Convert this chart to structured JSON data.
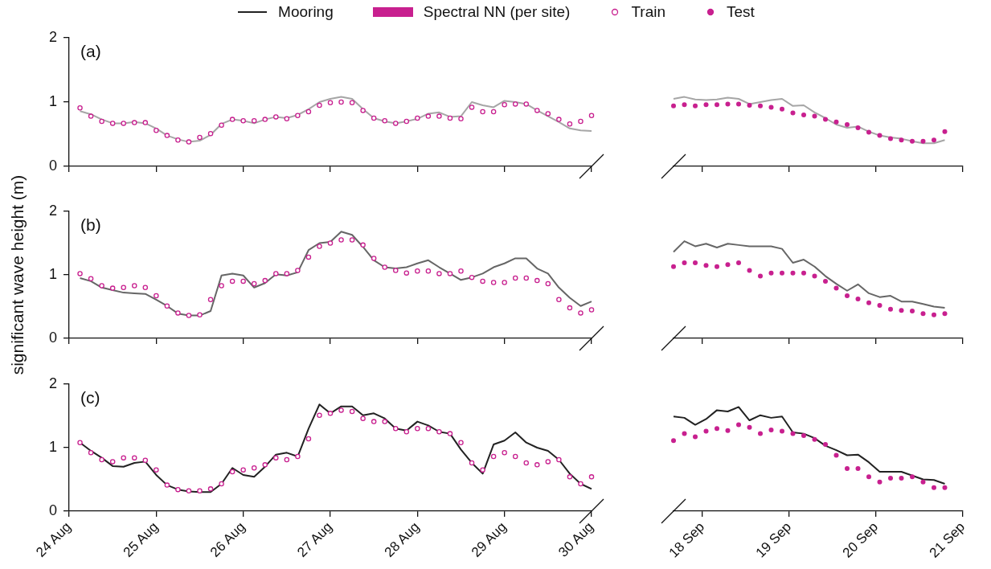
{
  "chart_data": [
    {
      "type": "line",
      "annotations": [
        "(a)"
      ],
      "tick_labels": "y",
      "ylim": [
        0,
        2
      ],
      "yticks": [
        0,
        1,
        2
      ],
      "xlim": [
        "--08-24",
        "--08-30"
      ],
      "xticks": [
        {
          "value": "--08-24",
          "label": null
        },
        {
          "value": "--08-25",
          "label": null
        },
        {
          "value": "--08-26",
          "label": null
        },
        {
          "value": "--08-27",
          "label": null
        },
        {
          "value": "--08-28",
          "label": null
        },
        {
          "value": "--08-29",
          "label": null
        },
        {
          "value": "--08-30",
          "label": null
        }
      ],
      "x": [
        "--08-24T03:00",
        "--08-24T06:00",
        "--08-24T09:00",
        "--08-24T12:00",
        "--08-24T15:00",
        "--08-24T18:00",
        "--08-24T21:00",
        "--08-25T00:00",
        "--08-25T03:00",
        "--08-25T06:00",
        "--08-25T09:00",
        "--08-25T12:00",
        "--08-25T15:00",
        "--08-25T18:00",
        "--08-25T21:00",
        "--08-26T00:00",
        "--08-26T03:00",
        "--08-26T06:00",
        "--08-26T09:00",
        "--08-26T12:00",
        "--08-26T15:00",
        "--08-26T18:00",
        "--08-26T21:00",
        "--08-27T00:00",
        "--08-27T03:00",
        "--08-27T06:00",
        "--08-27T09:00",
        "--08-27T12:00",
        "--08-27T15:00",
        "--08-27T18:00",
        "--08-27T21:00",
        "--08-28T00:00",
        "--08-28T03:00",
        "--08-28T06:00",
        "--08-28T09:00",
        "--08-28T12:00",
        "--08-28T15:00",
        "--08-28T18:00",
        "--08-28T21:00",
        "--08-29T00:00",
        "--08-29T03:00",
        "--08-29T06:00",
        "--08-29T09:00",
        "--08-29T12:00",
        "--08-29T15:00",
        "--08-29T18:00",
        "--08-29T21:00",
        "--08-30T00:00"
      ],
      "series": [
        {
          "type": "line",
          "color": "#a6a6a6",
          "values": [
            0.86,
            0.81,
            0.73,
            0.67,
            0.67,
            0.69,
            0.67,
            0.59,
            0.48,
            0.42,
            0.38,
            0.4,
            0.49,
            0.66,
            0.73,
            0.71,
            0.67,
            0.73,
            0.77,
            0.75,
            0.8,
            0.89,
            1.0,
            1.05,
            1.08,
            1.05,
            0.89,
            0.75,
            0.7,
            0.67,
            0.7,
            0.74,
            0.82,
            0.84,
            0.77,
            0.78,
            1.0,
            0.95,
            0.92,
            1.02,
            1.0,
            0.97,
            0.87,
            0.78,
            0.69,
            0.59,
            0.56,
            0.55
          ]
        },
        {
          "type": "scatter",
          "color": "#c8208f",
          "marker": "circle",
          "values": [
            0.91,
            0.78,
            0.7,
            0.67,
            0.67,
            0.68,
            0.68,
            0.56,
            0.48,
            0.41,
            0.38,
            0.45,
            0.51,
            0.64,
            0.73,
            0.71,
            0.71,
            0.73,
            0.77,
            0.74,
            0.79,
            0.85,
            0.95,
            0.99,
            1.0,
            0.99,
            0.87,
            0.75,
            0.71,
            0.67,
            0.7,
            0.75,
            0.78,
            0.78,
            0.75,
            0.74,
            0.92,
            0.85,
            0.85,
            0.96,
            0.97,
            0.97,
            0.87,
            0.82,
            0.73,
            0.66,
            0.7,
            0.79
          ]
        }
      ]
    },
    {
      "type": "line",
      "tick_labels": false,
      "ylim": [
        0,
        2
      ],
      "yticks": [
        0,
        1,
        2
      ],
      "xlim": [
        "--09-17T16:00",
        "--09-21"
      ],
      "xticks": [
        {
          "value": "--09-18",
          "label": null
        },
        {
          "value": "--09-19",
          "label": null
        },
        {
          "value": "--09-20",
          "label": null
        },
        {
          "value": "--09-21",
          "label": null
        }
      ],
      "x": [
        "--09-17T16:00",
        "--09-17T19:00",
        "--09-17T22:00",
        "--09-18T01:00",
        "--09-18T04:00",
        "--09-18T07:00",
        "--09-18T10:00",
        "--09-18T13:00",
        "--09-18T16:00",
        "--09-18T19:00",
        "--09-18T22:00",
        "--09-19T01:00",
        "--09-19T04:00",
        "--09-19T07:00",
        "--09-19T10:00",
        "--09-19T13:00",
        "--09-19T16:00",
        "--09-19T19:00",
        "--09-19T22:00",
        "--09-20T01:00",
        "--09-20T04:00",
        "--09-20T07:00",
        "--09-20T10:00",
        "--09-20T13:00",
        "--09-20T16:00",
        "--09-20T19:00"
      ],
      "series": [
        {
          "type": "line",
          "color": "#a6a6a6",
          "values": [
            1.05,
            1.08,
            1.04,
            1.03,
            1.04,
            1.07,
            1.05,
            0.97,
            1.0,
            1.03,
            1.05,
            0.94,
            0.95,
            0.84,
            0.75,
            0.65,
            0.6,
            0.62,
            0.54,
            0.48,
            0.45,
            0.43,
            0.39,
            0.36,
            0.36,
            0.41
          ]
        },
        {
          "type": "scatter",
          "color": "#c8208f",
          "marker": "circle",
          "values": [
            0.94,
            0.96,
            0.94,
            0.96,
            0.96,
            0.97,
            0.97,
            0.95,
            0.94,
            0.92,
            0.89,
            0.83,
            0.8,
            0.78,
            0.73,
            0.69,
            0.65,
            0.6,
            0.53,
            0.48,
            0.43,
            0.41,
            0.39,
            0.39,
            0.41,
            0.54
          ]
        }
      ]
    },
    {
      "type": "line",
      "ylabel": "significant wave height (m)",
      "annotations": [
        "(b)"
      ],
      "tick_labels": "y",
      "ylim": [
        0,
        2
      ],
      "yticks": [
        0,
        1,
        2
      ],
      "xlim": [
        "--08-24",
        "--08-30"
      ],
      "xticks": [
        {
          "value": "--08-24",
          "label": null
        },
        {
          "value": "--08-25",
          "label": null
        },
        {
          "value": "--08-26",
          "label": null
        },
        {
          "value": "--08-27",
          "label": null
        },
        {
          "value": "--08-28",
          "label": null
        },
        {
          "value": "--08-29",
          "label": null
        },
        {
          "value": "--08-30",
          "label": null
        }
      ],
      "x": [
        "--08-24T03:00",
        "--08-24T06:00",
        "--08-24T09:00",
        "--08-24T12:00",
        "--08-24T15:00",
        "--08-24T18:00",
        "--08-24T21:00",
        "--08-25T00:00",
        "--08-25T03:00",
        "--08-25T06:00",
        "--08-25T09:00",
        "--08-25T12:00",
        "--08-25T15:00",
        "--08-25T18:00",
        "--08-25T21:00",
        "--08-26T00:00",
        "--08-26T03:00",
        "--08-26T06:00",
        "--08-26T09:00",
        "--08-26T12:00",
        "--08-26T15:00",
        "--08-26T18:00",
        "--08-26T21:00",
        "--08-27T00:00",
        "--08-27T03:00",
        "--08-27T06:00",
        "--08-27T09:00",
        "--08-27T12:00",
        "--08-27T15:00",
        "--08-27T18:00",
        "--08-27T21:00",
        "--08-28T00:00",
        "--08-28T03:00",
        "--08-28T06:00",
        "--08-28T09:00",
        "--08-28T12:00",
        "--08-28T15:00",
        "--08-28T18:00",
        "--08-28T21:00",
        "--08-29T00:00",
        "--08-29T03:00",
        "--08-29T06:00",
        "--08-29T09:00",
        "--08-29T12:00",
        "--08-29T15:00",
        "--08-29T18:00",
        "--08-29T21:00",
        "--08-30T00:00"
      ],
      "series": [
        {
          "type": "line",
          "color": "#666666",
          "values": [
            0.95,
            0.9,
            0.8,
            0.76,
            0.72,
            0.71,
            0.7,
            0.61,
            0.51,
            0.39,
            0.36,
            0.36,
            0.43,
            0.99,
            1.02,
            0.99,
            0.8,
            0.87,
            1.01,
            0.99,
            1.04,
            1.39,
            1.5,
            1.52,
            1.68,
            1.63,
            1.44,
            1.23,
            1.12,
            1.1,
            1.12,
            1.18,
            1.23,
            1.12,
            1.02,
            0.92,
            0.96,
            1.02,
            1.12,
            1.18,
            1.26,
            1.26,
            1.1,
            1.02,
            0.8,
            0.64,
            0.51,
            0.58
          ]
        },
        {
          "type": "scatter",
          "color": "#c8208f",
          "marker": "circle",
          "values": [
            1.02,
            0.94,
            0.83,
            0.79,
            0.8,
            0.83,
            0.8,
            0.67,
            0.51,
            0.4,
            0.36,
            0.37,
            0.61,
            0.83,
            0.9,
            0.9,
            0.86,
            0.91,
            1.02,
            1.02,
            1.07,
            1.28,
            1.45,
            1.5,
            1.55,
            1.55,
            1.47,
            1.26,
            1.12,
            1.07,
            1.03,
            1.06,
            1.06,
            1.02,
            1.02,
            1.06,
            0.96,
            0.9,
            0.88,
            0.88,
            0.95,
            0.95,
            0.91,
            0.86,
            0.61,
            0.48,
            0.4,
            0.45
          ]
        }
      ]
    },
    {
      "type": "line",
      "tick_labels": false,
      "ylim": [
        0,
        2
      ],
      "yticks": [
        0,
        1,
        2
      ],
      "xlim": [
        "--09-17T16:00",
        "--09-21"
      ],
      "xticks": [
        {
          "value": "--09-18",
          "label": null
        },
        {
          "value": "--09-19",
          "label": null
        },
        {
          "value": "--09-20",
          "label": null
        },
        {
          "value": "--09-21",
          "label": null
        }
      ],
      "x": [
        "--09-17T16:00",
        "--09-17T19:00",
        "--09-17T22:00",
        "--09-18T01:00",
        "--09-18T04:00",
        "--09-18T07:00",
        "--09-18T10:00",
        "--09-18T13:00",
        "--09-18T16:00",
        "--09-18T19:00",
        "--09-18T22:00",
        "--09-19T01:00",
        "--09-19T04:00",
        "--09-19T07:00",
        "--09-19T10:00",
        "--09-19T13:00",
        "--09-19T16:00",
        "--09-19T19:00",
        "--09-19T22:00",
        "--09-20T01:00",
        "--09-20T04:00",
        "--09-20T07:00",
        "--09-20T10:00",
        "--09-20T13:00",
        "--09-20T16:00",
        "--09-20T19:00"
      ],
      "series": [
        {
          "type": "line",
          "color": "#666666",
          "values": [
            1.36,
            1.53,
            1.45,
            1.49,
            1.43,
            1.49,
            1.47,
            1.45,
            1.45,
            1.45,
            1.41,
            1.19,
            1.24,
            1.13,
            0.98,
            0.86,
            0.75,
            0.85,
            0.71,
            0.65,
            0.67,
            0.58,
            0.58,
            0.54,
            0.5,
            0.48
          ]
        },
        {
          "type": "scatter",
          "color": "#c8208f",
          "marker": "circle",
          "values": [
            1.13,
            1.19,
            1.19,
            1.15,
            1.13,
            1.16,
            1.19,
            1.07,
            0.98,
            1.03,
            1.03,
            1.03,
            1.03,
            0.98,
            0.9,
            0.79,
            0.67,
            0.62,
            0.56,
            0.52,
            0.46,
            0.44,
            0.43,
            0.39,
            0.37,
            0.39
          ]
        }
      ]
    },
    {
      "type": "line",
      "legend": "top",
      "legend_title": "Spectral NN (per site)",
      "annotations": [
        "(c)"
      ],
      "ylim": [
        0,
        2
      ],
      "yticks": [
        0,
        1,
        2
      ],
      "xlim": [
        "--08-24",
        "--08-30"
      ],
      "xticks": [
        {
          "value": "--08-24",
          "label": "24 Aug"
        },
        {
          "value": "--08-25",
          "label": "25 Aug"
        },
        {
          "value": "--08-26",
          "label": "26 Aug"
        },
        {
          "value": "--08-27",
          "label": "27 Aug"
        },
        {
          "value": "--08-28",
          "label": "28 Aug"
        },
        {
          "value": "--08-29",
          "label": "29 Aug"
        },
        {
          "value": "--08-30",
          "label": "30 Aug"
        }
      ],
      "x": [
        "--08-24T03:00",
        "--08-24T06:00",
        "--08-24T09:00",
        "--08-24T12:00",
        "--08-24T15:00",
        "--08-24T18:00",
        "--08-24T21:00",
        "--08-25T00:00",
        "--08-25T03:00",
        "--08-25T06:00",
        "--08-25T09:00",
        "--08-25T12:00",
        "--08-25T15:00",
        "--08-25T18:00",
        "--08-25T21:00",
        "--08-26T00:00",
        "--08-26T03:00",
        "--08-26T06:00",
        "--08-26T09:00",
        "--08-26T12:00",
        "--08-26T15:00",
        "--08-26T18:00",
        "--08-26T21:00",
        "--08-27T00:00",
        "--08-27T03:00",
        "--08-27T06:00",
        "--08-27T09:00",
        "--08-27T12:00",
        "--08-27T15:00",
        "--08-27T18:00",
        "--08-27T21:00",
        "--08-28T00:00",
        "--08-28T03:00",
        "--08-28T06:00",
        "--08-28T09:00",
        "--08-28T12:00",
        "--08-28T15:00",
        "--08-28T18:00",
        "--08-28T21:00",
        "--08-29T00:00",
        "--08-29T03:00",
        "--08-29T06:00",
        "--08-29T09:00",
        "--08-29T12:00",
        "--08-29T15:00",
        "--08-29T18:00",
        "--08-29T21:00",
        "--08-30T00:00"
      ],
      "series": [
        {
          "name": "Mooring",
          "type": "line",
          "color": "#222222",
          "values": [
            1.08,
            0.95,
            0.84,
            0.71,
            0.7,
            0.76,
            0.78,
            0.57,
            0.41,
            0.34,
            0.31,
            0.3,
            0.3,
            0.43,
            0.68,
            0.57,
            0.54,
            0.7,
            0.89,
            0.92,
            0.86,
            1.3,
            1.68,
            1.54,
            1.65,
            1.65,
            1.51,
            1.54,
            1.46,
            1.3,
            1.27,
            1.41,
            1.35,
            1.25,
            1.22,
            0.97,
            0.76,
            0.59,
            1.05,
            1.11,
            1.24,
            1.08,
            1.0,
            0.95,
            0.81,
            0.59,
            0.43,
            0.35
          ]
        },
        {
          "name": "Train",
          "type": "scatter",
          "color": "#c8208f",
          "marker": "circle",
          "values": [
            1.08,
            0.92,
            0.81,
            0.78,
            0.84,
            0.84,
            0.8,
            0.65,
            0.41,
            0.34,
            0.32,
            0.32,
            0.35,
            0.43,
            0.62,
            0.65,
            0.68,
            0.73,
            0.84,
            0.81,
            0.86,
            1.14,
            1.51,
            1.54,
            1.59,
            1.57,
            1.46,
            1.41,
            1.41,
            1.3,
            1.25,
            1.3,
            1.3,
            1.25,
            1.22,
            1.08,
            0.76,
            0.65,
            0.86,
            0.92,
            0.86,
            0.76,
            0.73,
            0.78,
            0.81,
            0.54,
            0.43,
            0.54
          ]
        }
      ]
    },
    {
      "type": "line",
      "tick_labels": "x",
      "ylim": [
        0,
        2
      ],
      "yticks": [
        0,
        1,
        2
      ],
      "xlim": [
        "--09-17T16:00",
        "--09-21"
      ],
      "xticks": [
        {
          "value": "--09-18",
          "label": "18 Sep"
        },
        {
          "value": "--09-19",
          "label": "19 Sep"
        },
        {
          "value": "--09-20",
          "label": "20 Sep"
        },
        {
          "value": "--09-21",
          "label": "21 Sep"
        }
      ],
      "x": [
        "--09-17T16:00",
        "--09-17T19:00",
        "--09-17T22:00",
        "--09-18T01:00",
        "--09-18T04:00",
        "--09-18T07:00",
        "--09-18T10:00",
        "--09-18T13:00",
        "--09-18T16:00",
        "--09-18T19:00",
        "--09-18T22:00",
        "--09-19T01:00",
        "--09-19T04:00",
        "--09-19T07:00",
        "--09-19T10:00",
        "--09-19T13:00",
        "--09-19T16:00",
        "--09-19T19:00",
        "--09-19T22:00",
        "--09-20T01:00",
        "--09-20T04:00",
        "--09-20T07:00",
        "--09-20T10:00",
        "--09-20T13:00",
        "--09-20T16:00",
        "--09-20T19:00"
      ],
      "series": [
        {
          "type": "line",
          "color": "#222222",
          "values": [
            1.49,
            1.47,
            1.36,
            1.45,
            1.59,
            1.57,
            1.64,
            1.43,
            1.51,
            1.47,
            1.49,
            1.24,
            1.22,
            1.15,
            1.03,
            0.96,
            0.88,
            0.89,
            0.77,
            0.62,
            0.62,
            0.62,
            0.56,
            0.5,
            0.49,
            0.43
          ]
        },
        {
          "name": "Test",
          "type": "scatter",
          "color": "#c8208f",
          "marker": "circle",
          "values": [
            1.11,
            1.22,
            1.17,
            1.26,
            1.3,
            1.27,
            1.36,
            1.32,
            1.22,
            1.28,
            1.26,
            1.22,
            1.19,
            1.13,
            1.05,
            0.88,
            0.67,
            0.67,
            0.54,
            0.46,
            0.52,
            0.52,
            0.54,
            0.46,
            0.37,
            0.37
          ]
        }
      ]
    }
  ]
}
